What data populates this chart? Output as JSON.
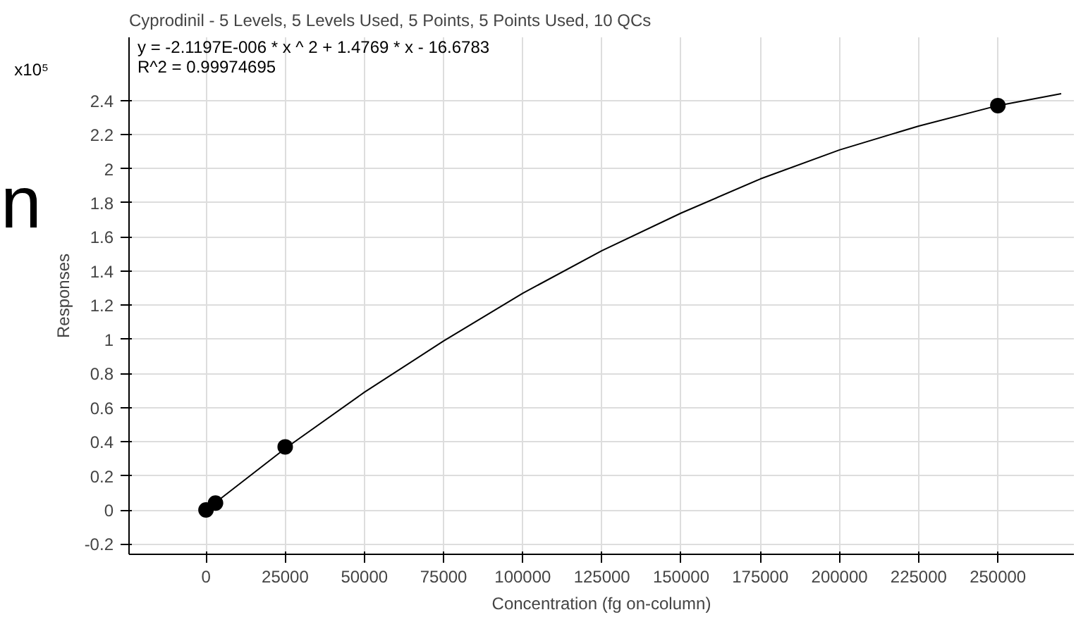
{
  "chart_data": {
    "type": "line",
    "title": "Cyprodinil - 5 Levels, 5 Levels Used, 5 Points, 5 Points Used, 10 QCs",
    "xlabel": "Concentration (fg on-column)",
    "ylabel": "Responses",
    "annotations": [
      "y = -2.1197E-006 * x ^ 2  + 1.4769 * x  - 16.6783",
      "R^2 = 0.99974695",
      "x10⁵",
      "n"
    ],
    "series": [
      {
        "color": "#000000",
        "x": [
          0,
          25000,
          50000,
          75000,
          100000,
          125000,
          150000,
          175000,
          200000,
          225000,
          250000,
          270000
        ],
        "values": [
          0,
          0.36,
          0.69,
          0.99,
          1.27,
          1.52,
          1.74,
          1.94,
          2.11,
          2.25,
          2.37,
          2.44
        ]
      },
      {
        "type": "scatter",
        "marker": "circle",
        "color": "#000000",
        "x": [
          0,
          3000,
          25000,
          250000
        ],
        "values": [
          0,
          0.04,
          0.37,
          2.37
        ]
      }
    ],
    "xlim": [
      -24300,
      274000
    ],
    "ylim": [
      -0.26,
      2.77
    ],
    "xticks": [
      0,
      25000,
      50000,
      75000,
      100000,
      125000,
      150000,
      175000,
      200000,
      225000,
      250000
    ],
    "yticks": [
      -0.2,
      0,
      0.2,
      0.4,
      0.6,
      0.8,
      1,
      1.2,
      1.4,
      1.6,
      1.8,
      2,
      2.2,
      2.4
    ],
    "grid": true,
    "line_style": "solid"
  }
}
